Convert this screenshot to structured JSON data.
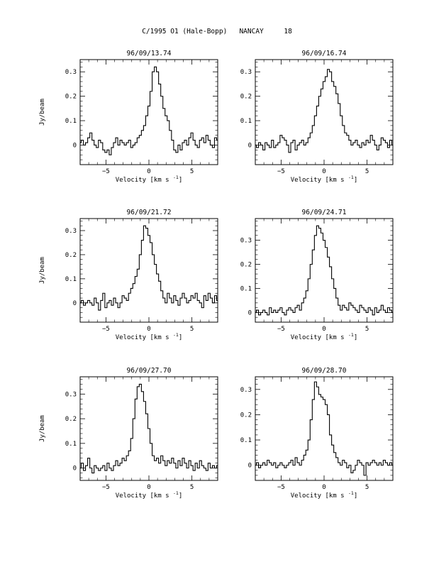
{
  "page": {
    "title": "C/1995 O1 (Hale-Bopp)   NANCAY     18"
  },
  "chart_data": [
    {
      "type": "line",
      "title": "96/09/13.74",
      "xlabel": "Velocity [km s",
      "xlabel_sup": "-1",
      "xlabel_close": "]",
      "ylabel": "Jy/beam",
      "xlim": [
        -8,
        8
      ],
      "ylim": [
        -0.08,
        0.35
      ],
      "xticks": [
        -5,
        0,
        5
      ],
      "xtick_labels": [
        "−5",
        "0",
        "5"
      ],
      "yticks": [
        0,
        0.1,
        0.2,
        0.3
      ],
      "ytick_labels": [
        "0",
        "0.1",
        "0.2",
        "0.3"
      ],
      "x_start": -8,
      "x_step": 0.25,
      "y": [
        0.01,
        0.02,
        0.0,
        0.01,
        0.03,
        0.05,
        0.02,
        0.0,
        -0.01,
        0.02,
        0.01,
        -0.02,
        -0.03,
        -0.02,
        -0.04,
        -0.01,
        0.01,
        0.03,
        0.0,
        0.02,
        0.01,
        0.0,
        0.01,
        0.02,
        -0.01,
        0.0,
        0.01,
        0.03,
        0.04,
        0.06,
        0.08,
        0.12,
        0.16,
        0.22,
        0.3,
        0.32,
        0.3,
        0.25,
        0.2,
        0.15,
        0.12,
        0.1,
        0.06,
        0.02,
        -0.02,
        -0.03,
        0.0,
        -0.02,
        0.01,
        0.02,
        0.0,
        0.03,
        0.05,
        0.02,
        0.0,
        -0.01,
        0.02,
        0.03,
        0.01,
        0.04,
        0.02,
        0.0,
        -0.01,
        0.03,
        0.02
      ]
    },
    {
      "type": "line",
      "title": "96/09/16.74",
      "xlabel": "Velocity [km s",
      "xlabel_sup": "-1",
      "xlabel_close": "]",
      "ylabel": "",
      "xlim": [
        -8,
        8
      ],
      "ylim": [
        -0.08,
        0.35
      ],
      "xticks": [
        -5,
        0,
        5
      ],
      "xtick_labels": [
        "−5",
        "0",
        "5"
      ],
      "yticks": [
        0,
        0.1,
        0.2,
        0.3
      ],
      "ytick_labels": [
        "0",
        "0.1",
        "0.2",
        "0.3"
      ],
      "x_start": -8,
      "x_step": 0.25,
      "y": [
        0.0,
        -0.01,
        0.01,
        0.0,
        -0.02,
        0.01,
        0.0,
        -0.01,
        0.02,
        -0.01,
        0.0,
        0.01,
        0.04,
        0.03,
        0.02,
        0.0,
        -0.03,
        0.01,
        0.02,
        -0.02,
        0.0,
        0.01,
        0.02,
        0.0,
        0.01,
        0.03,
        0.05,
        0.08,
        0.12,
        0.16,
        0.2,
        0.23,
        0.26,
        0.28,
        0.31,
        0.3,
        0.26,
        0.24,
        0.21,
        0.17,
        0.12,
        0.08,
        0.05,
        0.04,
        0.02,
        0.0,
        0.01,
        0.02,
        0.0,
        -0.01,
        0.01,
        0.0,
        0.02,
        0.01,
        0.04,
        0.02,
        0.0,
        -0.02,
        0.0,
        0.03,
        0.02,
        0.01,
        -0.01,
        0.02,
        0.0
      ]
    },
    {
      "type": "line",
      "title": "96/09/21.72",
      "xlabel": "Velocity [km s",
      "xlabel_sup": "-1",
      "xlabel_close": "]",
      "ylabel": "Jy/beam",
      "xlim": [
        -8,
        8
      ],
      "ylim": [
        -0.08,
        0.35
      ],
      "xticks": [
        -5,
        0,
        5
      ],
      "xtick_labels": [
        "−5",
        "0",
        "5"
      ],
      "yticks": [
        0,
        0.1,
        0.2,
        0.3
      ],
      "ytick_labels": [
        "0",
        "0.1",
        "0.2",
        "0.3"
      ],
      "x_start": -8,
      "x_step": 0.25,
      "y": [
        0.0,
        0.01,
        -0.01,
        0.0,
        0.01,
        0.0,
        -0.01,
        0.02,
        0.0,
        -0.03,
        0.01,
        0.04,
        -0.02,
        0.0,
        0.01,
        -0.01,
        0.02,
        0.0,
        -0.02,
        0.0,
        0.03,
        0.02,
        0.01,
        0.04,
        0.06,
        0.08,
        0.11,
        0.14,
        0.2,
        0.26,
        0.32,
        0.31,
        0.28,
        0.25,
        0.2,
        0.16,
        0.12,
        0.09,
        0.05,
        0.02,
        0.0,
        0.04,
        0.02,
        0.0,
        0.03,
        0.01,
        -0.01,
        0.02,
        0.04,
        0.02,
        0.0,
        0.01,
        0.03,
        0.02,
        0.04,
        0.01,
        0.0,
        -0.02,
        0.03,
        0.01,
        0.04,
        0.02,
        0.0,
        0.03,
        0.01
      ]
    },
    {
      "type": "line",
      "title": "96/09/24.71",
      "xlabel": "Velocity [km s",
      "xlabel_sup": "-1",
      "xlabel_close": "]",
      "ylabel": "",
      "xlim": [
        -8,
        8
      ],
      "ylim": [
        -0.04,
        0.39
      ],
      "xticks": [
        -5,
        0,
        5
      ],
      "xtick_labels": [
        "−5",
        "0",
        "5"
      ],
      "yticks": [
        0,
        0.1,
        0.2,
        0.3
      ],
      "ytick_labels": [
        "0",
        "0.1",
        "0.2",
        "0.3"
      ],
      "x_start": -8,
      "x_step": 0.25,
      "y": [
        0.0,
        0.01,
        -0.01,
        0.0,
        0.01,
        0.0,
        -0.01,
        0.02,
        0.0,
        0.01,
        0.0,
        0.01,
        0.02,
        0.0,
        -0.01,
        0.01,
        0.02,
        0.01,
        0.0,
        0.02,
        0.03,
        0.01,
        0.04,
        0.06,
        0.09,
        0.14,
        0.2,
        0.26,
        0.32,
        0.36,
        0.35,
        0.33,
        0.3,
        0.27,
        0.23,
        0.19,
        0.14,
        0.1,
        0.06,
        0.03,
        0.01,
        0.03,
        0.02,
        0.01,
        0.04,
        0.03,
        0.02,
        0.01,
        0.0,
        0.03,
        0.02,
        0.01,
        0.0,
        0.02,
        0.01,
        -0.01,
        0.02,
        0.0,
        0.01,
        0.03,
        0.01,
        0.0,
        0.02,
        0.01,
        0.0
      ]
    },
    {
      "type": "line",
      "title": "96/09/27.70",
      "xlabel": "Velocity [km s",
      "xlabel_sup": "-1",
      "xlabel_close": "]",
      "ylabel": "Jy/beam",
      "xlim": [
        -8,
        8
      ],
      "ylim": [
        -0.05,
        0.37
      ],
      "xticks": [
        -5,
        0,
        5
      ],
      "xtick_labels": [
        "−5",
        "0",
        "5"
      ],
      "yticks": [
        0,
        0.1,
        0.2,
        0.3
      ],
      "ytick_labels": [
        "0",
        "0.1",
        "0.2",
        "0.3"
      ],
      "x_start": -8,
      "x_step": 0.25,
      "y": [
        0.0,
        0.02,
        -0.01,
        0.01,
        0.04,
        0.0,
        -0.02,
        0.01,
        0.0,
        -0.01,
        0.0,
        0.01,
        -0.01,
        0.02,
        0.0,
        -0.01,
        0.01,
        0.03,
        0.01,
        0.02,
        0.04,
        0.03,
        0.05,
        0.07,
        0.12,
        0.2,
        0.28,
        0.33,
        0.34,
        0.31,
        0.27,
        0.22,
        0.16,
        0.1,
        0.05,
        0.03,
        0.04,
        0.02,
        0.05,
        0.03,
        0.01,
        0.03,
        0.02,
        0.04,
        0.02,
        0.0,
        0.03,
        0.01,
        0.04,
        0.02,
        0.0,
        0.03,
        0.01,
        -0.01,
        0.02,
        0.0,
        0.03,
        0.01,
        0.0,
        -0.01,
        0.02,
        0.0,
        0.01,
        0.0,
        0.01
      ]
    },
    {
      "type": "line",
      "title": "96/09/28.70",
      "xlabel": "Velocity [km s",
      "xlabel_sup": "-1",
      "xlabel_close": "]",
      "ylabel": "",
      "xlim": [
        -8,
        8
      ],
      "ylim": [
        -0.06,
        0.35
      ],
      "xticks": [
        -5,
        0,
        5
      ],
      "xtick_labels": [
        "−5",
        "0",
        "5"
      ],
      "yticks": [
        0,
        0.1,
        0.2,
        0.3
      ],
      "ytick_labels": [
        "0",
        "0.1",
        "0.2",
        "0.3"
      ],
      "x_start": -8,
      "x_step": 0.25,
      "y": [
        0.0,
        0.01,
        -0.01,
        0.0,
        0.01,
        0.0,
        0.02,
        0.01,
        0.0,
        0.01,
        -0.01,
        0.0,
        0.01,
        0.0,
        -0.01,
        0.0,
        0.01,
        0.02,
        0.0,
        0.03,
        0.01,
        0.0,
        0.02,
        0.04,
        0.06,
        0.1,
        0.18,
        0.26,
        0.33,
        0.31,
        0.28,
        0.27,
        0.26,
        0.24,
        0.2,
        0.12,
        0.08,
        0.05,
        0.03,
        0.01,
        0.0,
        0.02,
        0.01,
        -0.01,
        0.0,
        -0.03,
        -0.02,
        0.0,
        0.02,
        0.01,
        0.0,
        -0.04,
        0.01,
        0.0,
        0.01,
        0.02,
        0.01,
        0.0,
        0.01,
        0.0,
        0.02,
        0.01,
        0.0,
        0.01,
        0.0
      ]
    }
  ]
}
